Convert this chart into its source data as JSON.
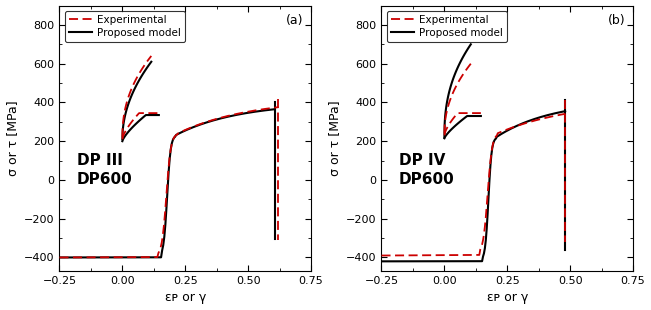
{
  "panel_a_label": "DP III\nDP600",
  "panel_b_label": "DP IV\nDP600",
  "panel_a_tag": "(a)",
  "panel_b_tag": "(b)",
  "legend_exp": "Experimental",
  "legend_model": "Proposed model",
  "xlabel": "εᴘ or γ",
  "ylabel": "σ or τ [MPa]",
  "xlim": [
    -0.25,
    0.75
  ],
  "ylim": [
    -470,
    900
  ],
  "yticks": [
    -400,
    -200,
    0,
    200,
    400,
    600,
    800
  ],
  "xticks": [
    -0.25,
    0.0,
    0.25,
    0.5,
    0.75
  ],
  "bg_color": "#ffffff",
  "exp_color": "#cc0000",
  "model_color": "#000000",
  "exp_lw": 1.3,
  "model_lw": 1.5
}
